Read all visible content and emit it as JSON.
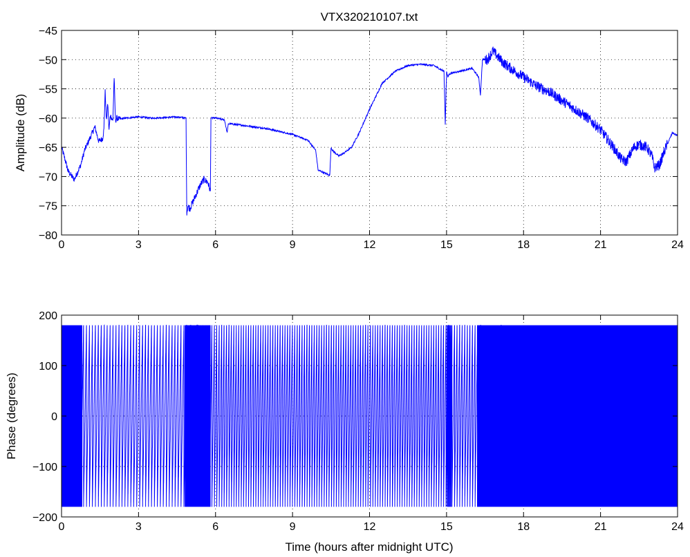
{
  "figure_title": "VTX320210107.txt",
  "chart_data": [
    {
      "type": "line",
      "title": "VTX320210107.txt",
      "xlabel": "",
      "ylabel": "Amplitude (dB)",
      "xlim": [
        0,
        24
      ],
      "ylim": [
        -80,
        -45
      ],
      "xticks": [
        0,
        3,
        6,
        9,
        12,
        15,
        18,
        21,
        24
      ],
      "yticks": [
        -80,
        -75,
        -70,
        -65,
        -60,
        -55,
        -50,
        -45
      ],
      "grid": true,
      "line_color": "#0000ff",
      "series": [
        {
          "x": [
            0.0,
            0.1,
            0.25,
            0.4,
            0.5,
            0.6,
            0.75,
            0.9,
            1.1,
            1.3,
            1.45,
            1.6,
            1.65,
            1.7,
            1.75,
            1.8,
            1.85,
            1.9,
            2.0,
            2.05,
            2.1,
            2.15,
            2.25,
            2.5,
            3.0,
            3.5,
            4.0,
            4.5,
            4.85,
            4.88,
            4.92,
            5.0,
            5.2,
            5.4,
            5.55,
            5.7,
            5.8,
            5.82,
            6.0,
            6.35,
            6.45,
            6.5,
            6.6,
            7.0,
            8.0,
            9.0,
            9.6,
            9.9,
            10.0,
            10.05,
            10.3,
            10.45,
            10.5,
            10.55,
            10.8,
            11.0,
            11.3,
            11.6,
            12.0,
            12.5,
            13.0,
            13.5,
            14.0,
            14.5,
            14.9,
            14.95,
            15.0,
            15.05,
            15.1,
            15.2,
            15.5,
            16.0,
            16.25,
            16.32,
            16.4,
            16.6,
            16.8,
            17.0,
            17.2,
            17.5,
            18.0,
            18.5,
            19.0,
            19.5,
            20.0,
            20.5,
            21.0,
            21.5,
            21.8,
            22.0,
            22.3,
            22.5,
            22.8,
            23.0,
            23.1,
            23.3,
            23.5,
            23.8,
            24.0
          ],
          "y": [
            -65.0,
            -66.5,
            -69.0,
            -70.0,
            -70.5,
            -69.5,
            -68.0,
            -65.5,
            -63.5,
            -61.5,
            -64.0,
            -63.5,
            -62.0,
            -55.5,
            -60.5,
            -57.5,
            -62.0,
            -59.5,
            -60.5,
            -53.0,
            -60.5,
            -60.0,
            -60.2,
            -60.0,
            -59.8,
            -60.0,
            -59.9,
            -59.8,
            -60.0,
            -76.5,
            -75.0,
            -75.5,
            -73.5,
            -71.5,
            -70.5,
            -71.0,
            -72.5,
            -60.0,
            -60.0,
            -60.3,
            -62.5,
            -61.0,
            -61.0,
            -61.2,
            -61.8,
            -62.8,
            -63.8,
            -65.5,
            -69.0,
            -69.0,
            -69.5,
            -69.8,
            -65.0,
            -65.5,
            -66.5,
            -66.0,
            -65.0,
            -62.5,
            -58.5,
            -54.0,
            -52.0,
            -51.0,
            -50.8,
            -51.0,
            -52.0,
            -61.0,
            -52.0,
            -53.0,
            -52.5,
            -52.3,
            -52.0,
            -51.5,
            -53.0,
            -56.0,
            -50.0,
            -50.0,
            -48.5,
            -49.5,
            -50.5,
            -51.5,
            -53.0,
            -54.5,
            -55.5,
            -57.0,
            -58.5,
            -60.0,
            -62.0,
            -65.0,
            -67.0,
            -67.5,
            -65.0,
            -64.5,
            -65.0,
            -66.5,
            -68.5,
            -68.0,
            -65.5,
            -62.5,
            -63.0
          ]
        }
      ]
    },
    {
      "type": "line",
      "title": "",
      "xlabel": "Time (hours after midnight UTC)",
      "ylabel": "Phase (degrees)",
      "xlim": [
        0,
        24
      ],
      "ylim": [
        -200,
        200
      ],
      "xticks": [
        0,
        3,
        6,
        9,
        12,
        15,
        18,
        21,
        24
      ],
      "yticks": [
        -200,
        -100,
        0,
        100,
        200
      ],
      "grid": true,
      "line_color": "#0000ff",
      "phase_range": [
        -180,
        180
      ],
      "wrap_period_hours": [
        {
          "from": 0.0,
          "to": 0.8,
          "period": 0.02
        },
        {
          "from": 0.8,
          "to": 4.8,
          "period": 0.115
        },
        {
          "from": 4.8,
          "to": 5.8,
          "period": 0.02
        },
        {
          "from": 5.8,
          "to": 15.0,
          "period": 0.095
        },
        {
          "from": 15.0,
          "to": 15.2,
          "period": 0.03
        },
        {
          "from": 15.2,
          "to": 16.2,
          "period": 0.1
        },
        {
          "from": 16.2,
          "to": 17.2,
          "period": 0.025
        },
        {
          "from": 17.2,
          "to": 24.0,
          "period": 0.012
        }
      ]
    }
  ]
}
